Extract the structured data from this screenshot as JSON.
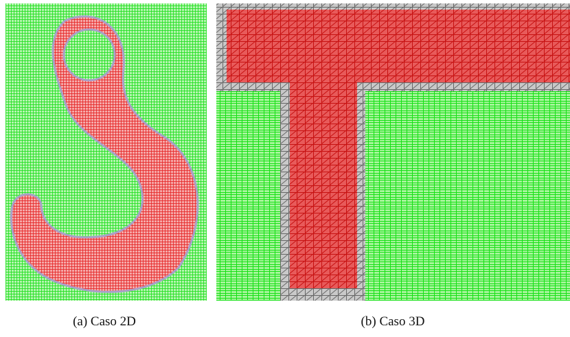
{
  "figure": {
    "subfigures": [
      {
        "caption": "(a) Caso 2D"
      },
      {
        "caption": "(b) Caso 3D"
      }
    ]
  }
}
